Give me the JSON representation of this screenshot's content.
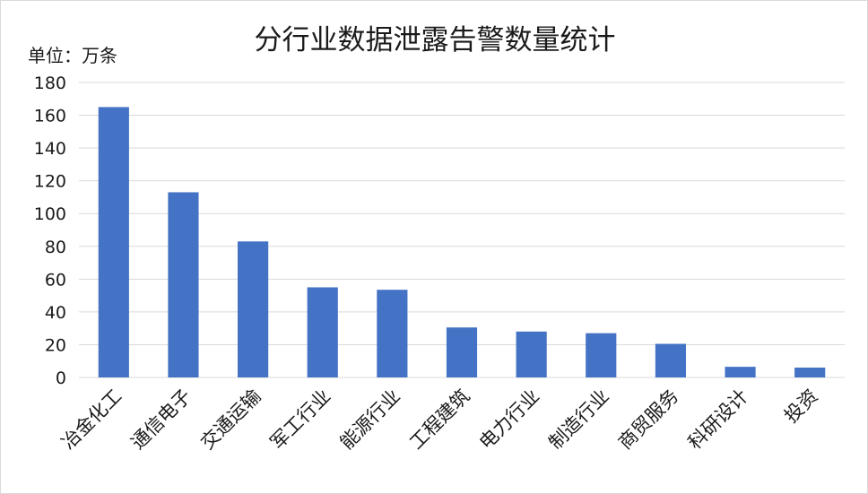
{
  "chart_data": {
    "type": "bar",
    "title": "分行业数据泄露告警数量统计",
    "unit_label": "单位：万条",
    "categories": [
      "冶金化工",
      "通信电子",
      "交通运输",
      "军工行业",
      "能源行业",
      "工程建筑",
      "电力行业",
      "制造行业",
      "商贸服务",
      "科研设计",
      "投资"
    ],
    "values": [
      165,
      113,
      83,
      55,
      53.5,
      30.5,
      28,
      27,
      20.5,
      6.5,
      6
    ],
    "ylim": [
      0,
      180
    ],
    "yticks": [
      0,
      20,
      40,
      60,
      80,
      100,
      120,
      140,
      160,
      180
    ],
    "grid": true,
    "bar_color": "#4472c4",
    "grid_color": "#d9d9d9"
  }
}
